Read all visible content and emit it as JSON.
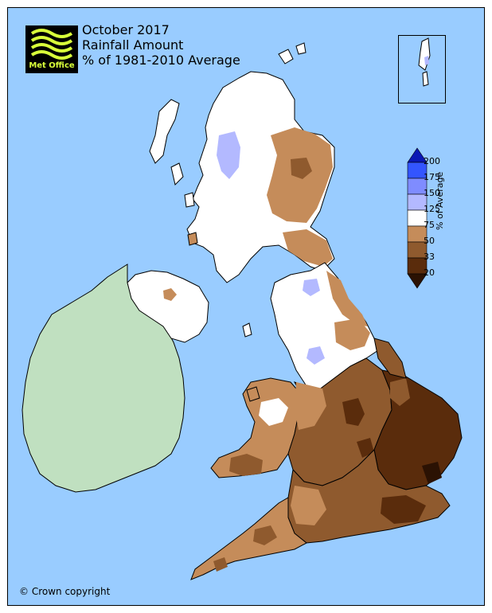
{
  "title": {
    "line1": "October 2017",
    "line2": "Rainfall Amount",
    "line3": "% of 1981-2010 Average"
  },
  "logo": {
    "text": "Met Office"
  },
  "credit": "© Crown copyright",
  "legend": {
    "title": "% of Average",
    "ticks": [
      "200",
      "175",
      "150",
      "125",
      "75",
      "50",
      "33",
      "20"
    ],
    "bins": [
      {
        "range": "175-200",
        "color": "#3355ff"
      },
      {
        "range": "150-175",
        "color": "#7f8cff"
      },
      {
        "range": "125-150",
        "color": "#b3b9ff"
      },
      {
        "range": "75-125",
        "color": "#ffffff"
      },
      {
        "range": "50-75",
        "color": "#c58c5a"
      },
      {
        "range": "33-50",
        "color": "#8f5a2e"
      },
      {
        "range": "20-33",
        "color": "#5a2c0c"
      }
    ],
    "over_color": "#0a17b5",
    "under_color": "#2b1203"
  },
  "colors": {
    "sea": "#99ccff",
    "ireland": "#c0e0c0",
    "boundary": "#000000"
  }
}
